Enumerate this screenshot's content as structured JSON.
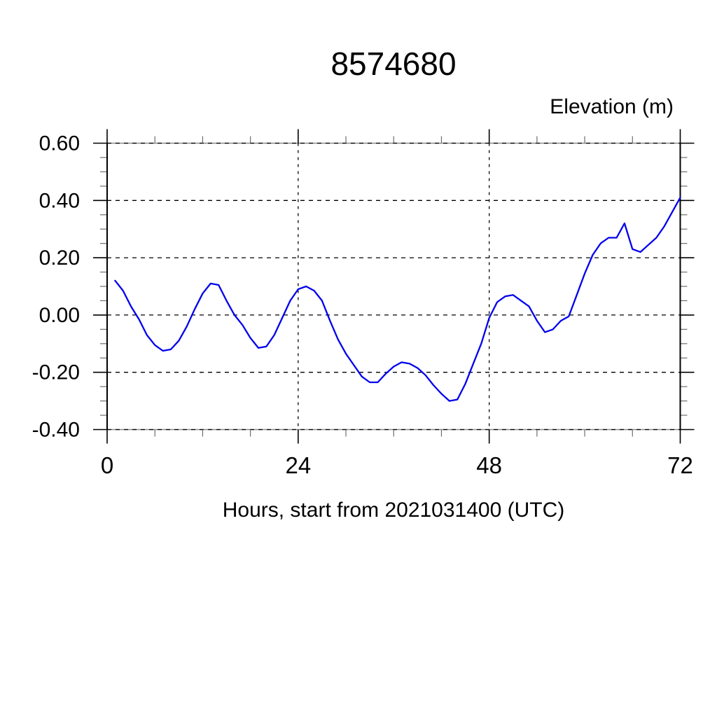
{
  "page": {
    "background": "#ffffff"
  },
  "chart_data": {
    "type": "line",
    "title": "8574680",
    "ylabel": "Elevation (m)",
    "xlabel": "Hours, start from 2021031400 (UTC)",
    "xlim": [
      0,
      72
    ],
    "ylim": [
      -0.4,
      0.6
    ],
    "x_major_ticks": [
      0,
      24,
      48,
      72
    ],
    "x_tick_labels": [
      "0",
      "24",
      "48",
      "72"
    ],
    "x_minor_step": 6,
    "y_major_ticks": [
      -0.4,
      -0.2,
      0,
      0.2,
      0.4,
      0.6
    ],
    "y_tick_labels": [
      "-0.40",
      "-0.20",
      "0.00",
      "0.20",
      "0.40",
      "0.60"
    ],
    "y_minor_step": 0.05,
    "grid": {
      "style": "dashed",
      "color": "#000000",
      "x_lines": [
        24,
        48
      ],
      "y_lines": [
        -0.4,
        -0.2,
        0,
        0.2,
        0.4,
        0.6
      ]
    },
    "legend": "none",
    "line_color": "#0000ee",
    "series": [
      {
        "name": "elevation",
        "x": [
          1,
          2,
          3,
          4,
          5,
          6,
          7,
          8,
          9,
          10,
          11,
          12,
          13,
          14,
          15,
          16,
          17,
          18,
          19,
          20,
          21,
          22,
          23,
          24,
          25,
          26,
          27,
          28,
          29,
          30,
          31,
          32,
          33,
          34,
          35,
          36,
          37,
          38,
          39,
          40,
          41,
          42,
          43,
          44,
          45,
          46,
          47,
          48,
          49,
          50,
          51,
          52,
          53,
          54,
          55,
          56,
          57,
          58,
          59,
          60,
          61,
          62,
          63,
          64,
          65,
          66,
          67,
          68,
          69,
          70,
          71,
          72
        ],
        "y": [
          0.12,
          0.085,
          0.03,
          -0.015,
          -0.07,
          -0.105,
          -0.125,
          -0.12,
          -0.09,
          -0.04,
          0.02,
          0.075,
          0.11,
          0.105,
          0.05,
          0.0,
          -0.035,
          -0.08,
          -0.115,
          -0.11,
          -0.07,
          -0.01,
          0.05,
          0.09,
          0.1,
          0.085,
          0.05,
          -0.02,
          -0.085,
          -0.135,
          -0.175,
          -0.215,
          -0.235,
          -0.235,
          -0.205,
          -0.18,
          -0.165,
          -0.17,
          -0.185,
          -0.21,
          -0.245,
          -0.275,
          -0.3,
          -0.295,
          -0.24,
          -0.17,
          -0.1,
          -0.01,
          0.045,
          0.065,
          0.07,
          0.05,
          0.03,
          -0.02,
          -0.06,
          -0.05,
          -0.02,
          -0.005,
          0.07,
          0.145,
          0.21,
          0.25,
          0.27,
          0.27,
          0.32,
          0.23,
          0.22,
          0.245,
          0.27,
          0.31,
          0.36,
          0.41
        ]
      }
    ]
  }
}
